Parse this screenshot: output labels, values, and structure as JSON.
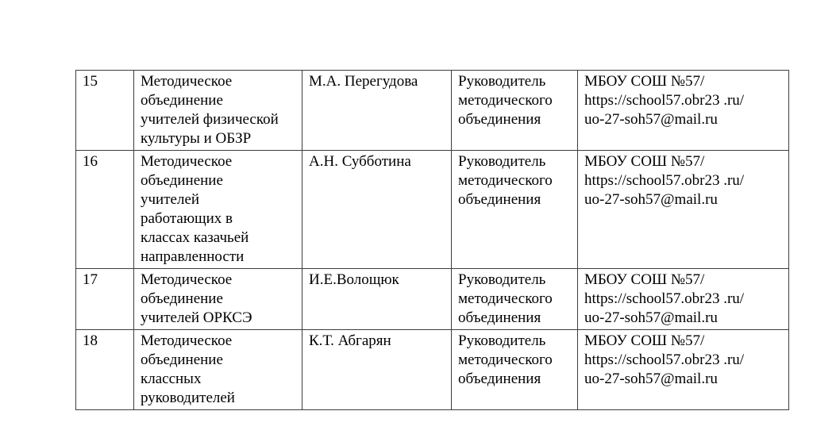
{
  "page": {
    "background_color": "#ffffff",
    "border_color": "#3d3d3d"
  },
  "table": {
    "description": "Document table listing school methodical associations (rows 15-18)",
    "column_keys": [
      "num",
      "association",
      "head_name",
      "position",
      "contacts"
    ],
    "rows": [
      {
        "num": "15",
        "association": "Методическое\nобъединение\nучителей физической\nкультуры и ОБЗР",
        "head_name": "М.А. Перегудова",
        "position": "Руководитель\nметодического\nобъединения",
        "contacts": "МБОУ СОШ №57/\nhttps://school57.obr23 .ru/\nuo-27-soh57@mail.ru"
      },
      {
        "num": "16",
        "association": "Методическое\nобъединение\nучителей\nработающих в\nклассах казачьей\nнаправленности",
        "head_name": "А.Н. Субботина",
        "position": "Руководитель\nметодического\nобъединения",
        "contacts": "МБОУ СОШ №57/\nhttps://school57.obr23 .ru/\nuo-27-soh57@mail.ru"
      },
      {
        "num": "17",
        "association": "Методическое\nобъединение\nучителей ОРКСЭ",
        "head_name": "И.Е.Волощюк",
        "position": "Руководитель\nметодического\nобъединения",
        "contacts": "МБОУ СОШ №57/\nhttps://school57.obr23 .ru/\nuo-27-soh57@mail.ru"
      },
      {
        "num": "18",
        "association": "Методическое\nобъединение\nклассных\nруководителей",
        "head_name": "К.Т. Абгарян",
        "position": "Руководитель\nметодического\nобъединения",
        "contacts": "МБОУ СОШ №57/\nhttps://school57.obr23 .ru/\nuo-27-soh57@mail.ru"
      }
    ]
  }
}
